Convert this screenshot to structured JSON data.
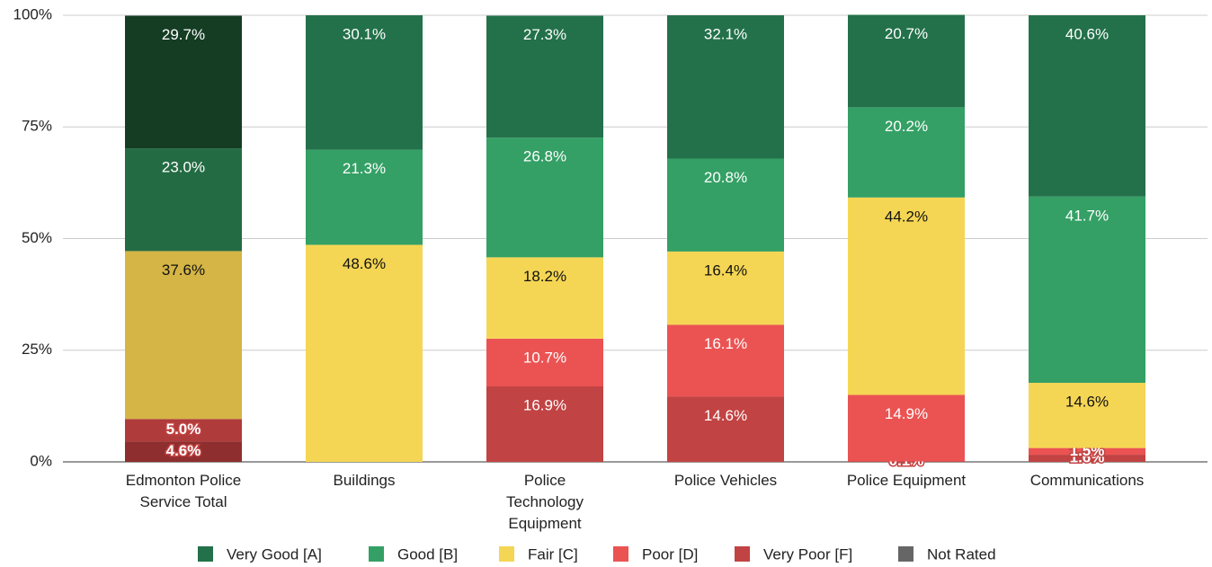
{
  "chart_data": {
    "type": "stacked_bar",
    "categories": [
      "Edmonton Police Service Total",
      "Buildings",
      "Police Technology Equipment",
      "Police Vehicles",
      "Police Equipment",
      "Communications"
    ],
    "series": [
      {
        "name": "Very Poor [F]",
        "color": "#c24343",
        "colors": [
          "#8f2e2e",
          "#c24343",
          "#c24343",
          "#c24343",
          "#c24343",
          "#c24343"
        ],
        "values": [
          4.6,
          null,
          16.9,
          14.6,
          0.1,
          1.6
        ],
        "value_labels": [
          "4.6%",
          null,
          "16.9%",
          "14.6%",
          "0.1%",
          "1.6%"
        ]
      },
      {
        "name": "Poor [D]",
        "color": "#eb5353",
        "colors": [
          "#b03b3b",
          "#eb5353",
          "#eb5353",
          "#eb5353",
          "#eb5353",
          "#eb5353"
        ],
        "values": [
          5.0,
          null,
          10.7,
          16.1,
          14.9,
          1.5
        ],
        "value_labels": [
          "5.0%",
          null,
          "10.7%",
          "16.1%",
          "14.9%",
          "1.5%"
        ]
      },
      {
        "name": "Fair [C]",
        "color": "#f5d654",
        "colors": [
          "#d4b545",
          "#f5d654",
          "#f5d654",
          "#f5d654",
          "#f5d654",
          "#f5d654"
        ],
        "values": [
          37.6,
          48.6,
          18.2,
          16.4,
          44.2,
          14.6
        ],
        "value_labels": [
          "37.6%",
          "48.6%",
          "18.2%",
          "16.4%",
          "44.2%",
          "14.6%"
        ]
      },
      {
        "name": "Good [B]",
        "color": "#34a065",
        "colors": [
          "#236b43",
          "#34a065",
          "#34a065",
          "#34a065",
          "#34a065",
          "#34a065"
        ],
        "values": [
          23.0,
          21.3,
          26.8,
          20.8,
          20.2,
          41.7
        ],
        "value_labels": [
          "23.0%",
          "21.3%",
          "26.8%",
          "20.8%",
          "20.2%",
          "41.7%"
        ]
      },
      {
        "name": "Very Good [A]",
        "color": "#23714a",
        "colors": [
          "#143d24",
          "#23714a",
          "#23714a",
          "#23714a",
          "#23714a",
          "#23714a"
        ],
        "values": [
          29.7,
          30.1,
          27.3,
          32.1,
          20.7,
          40.6
        ],
        "value_labels": [
          "29.7%",
          "30.1%",
          "27.3%",
          "32.1%",
          "20.7%",
          "40.6%"
        ]
      },
      {
        "name": "Not Rated",
        "color": "#666666",
        "colors": [
          "#666666",
          "#666666",
          "#666666",
          "#666666",
          "#666666",
          "#666666"
        ],
        "values": [
          null,
          null,
          null,
          null,
          null,
          null
        ],
        "value_labels": [
          null,
          null,
          null,
          null,
          null,
          null
        ]
      }
    ],
    "ylim": [
      0,
      100
    ],
    "yticks": [
      {
        "value": 0,
        "label": "0%"
      },
      {
        "value": 25,
        "label": "25%"
      },
      {
        "value": 50,
        "label": "50%"
      },
      {
        "value": 75,
        "label": "75%"
      },
      {
        "value": 100,
        "label": "100%"
      }
    ],
    "grid": true,
    "legend": "bottom"
  }
}
